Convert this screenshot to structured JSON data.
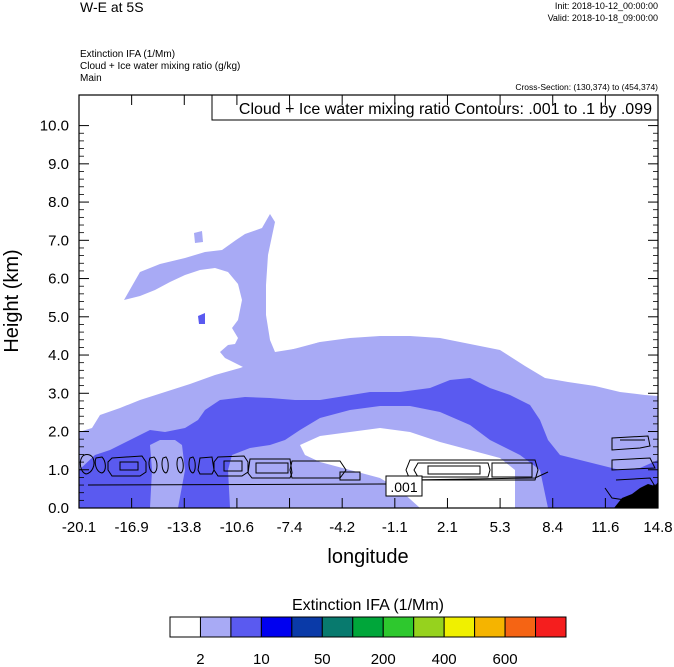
{
  "header": {
    "title": "W-E at 5S",
    "init": "Init: 2018-10-12_00:00:00",
    "valid": "Valid: 2018-10-18_09:00:00",
    "field1": "Extinction IFA   (1/Mm)",
    "field2": "Cloud + Ice water mixing ratio   (g/kg)",
    "field3": "Main",
    "cross_section": "Cross-Section: (130,374) to (454,374)"
  },
  "chart_data": {
    "type": "contour",
    "contour_note": "Cloud + Ice water mixing ratio Contours: .001 to .1 by .099",
    "contour_label": ".001",
    "xlabel": "longitude",
    "ylabel": "Height (km)",
    "xlim": [
      -20.1,
      14.8
    ],
    "ylim": [
      0.0,
      10.8
    ],
    "x_ticks": [
      "-20.1",
      "-16.9",
      "-13.8",
      "-10.6",
      "-7.4",
      "-4.2",
      "-1.1",
      "2.1",
      "5.3",
      "8.4",
      "11.6",
      "14.8"
    ],
    "y_ticks": [
      "0.0",
      "1.0",
      "2.0",
      "3.0",
      "4.0",
      "5.0",
      "6.0",
      "7.0",
      "8.0",
      "9.0",
      "10.0"
    ],
    "y_tick_values": [
      0,
      1,
      2,
      3,
      4,
      5,
      6,
      7,
      8,
      9,
      10
    ],
    "colorbar": {
      "title": "Extinction IFA  (1/Mm)",
      "labels": [
        "2",
        "10",
        "50",
        "200",
        "400",
        "600"
      ],
      "colors": [
        "#ffffff",
        "#a8aaf5",
        "#5a5af0",
        "#0000f0",
        "#0a3aa8",
        "#087a6e",
        "#00a63a",
        "#2ec82e",
        "#96d21e",
        "#f0f000",
        "#f5b400",
        "#f56414",
        "#f51e1e"
      ]
    },
    "shading_colors": {
      "light": "#a8aaf5",
      "medium": "#5a5af0",
      "terrain": "#000000"
    }
  }
}
